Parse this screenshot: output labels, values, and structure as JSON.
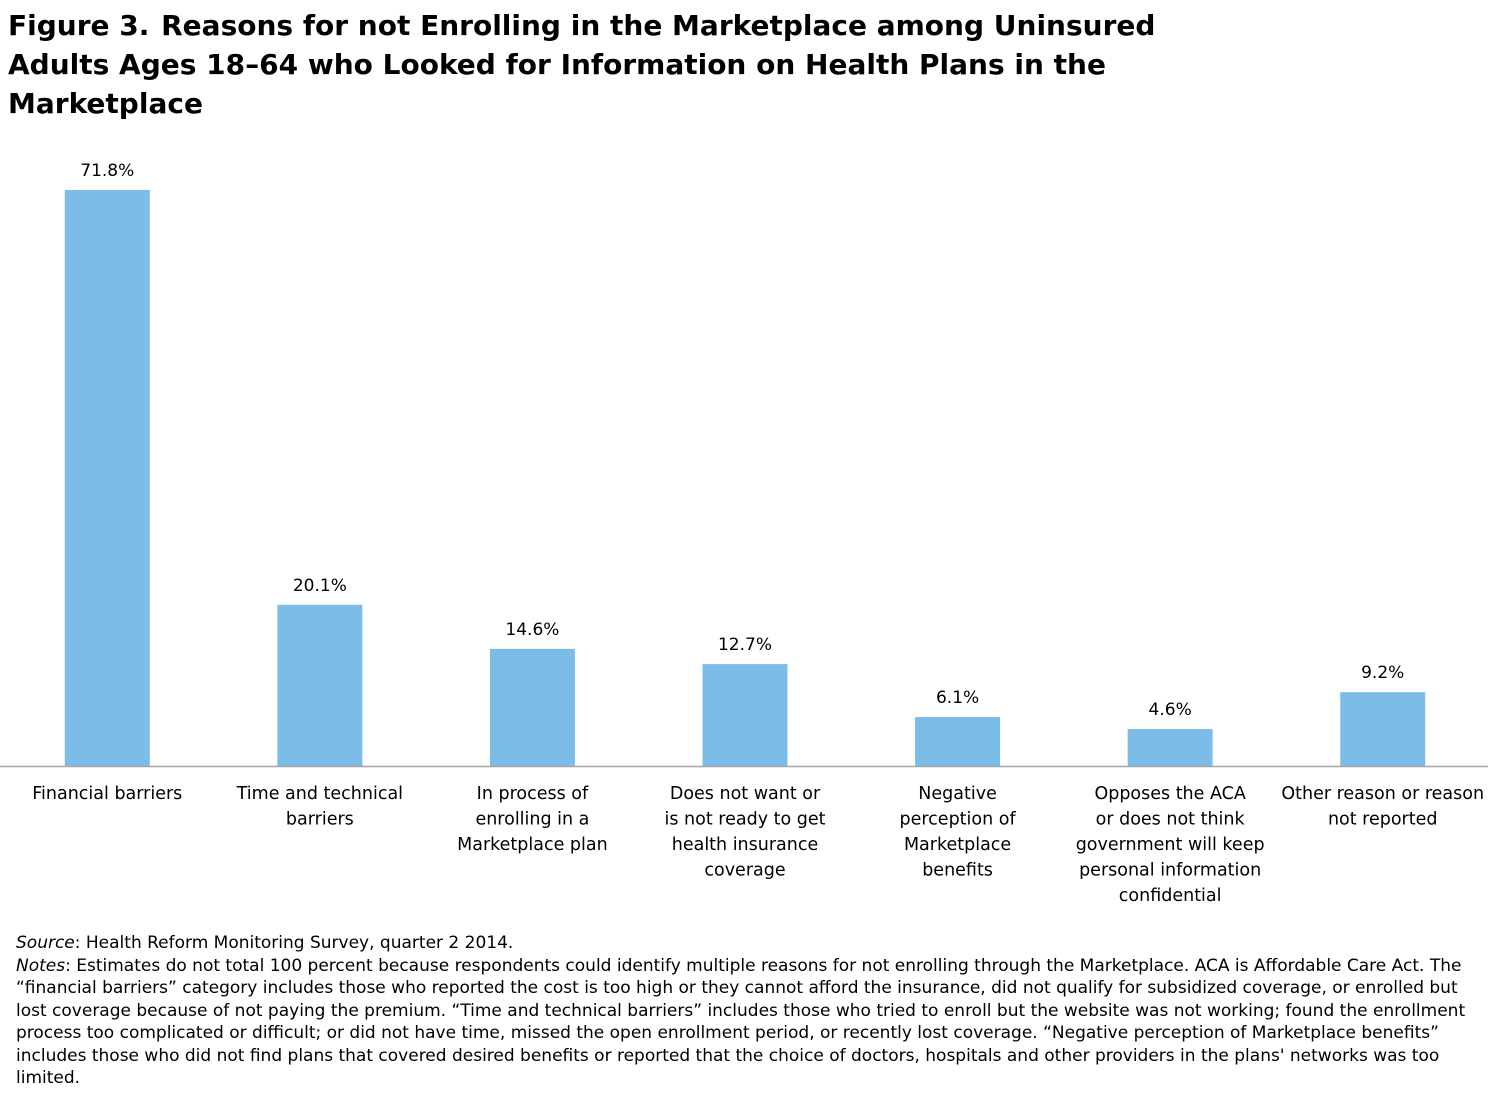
{
  "title": {
    "figure_label": "Figure 3.",
    "text": "Reasons for not Enrolling in the Marketplace among Uninsured Adults Ages 18–64 who Looked for Information on Health Plans in the Marketplace"
  },
  "chart_data": {
    "type": "bar",
    "categories": [
      [
        "Financial barriers"
      ],
      [
        "Time and technical",
        "barriers"
      ],
      [
        "In process of",
        "enrolling in a",
        "Marketplace plan"
      ],
      [
        "Does not want or",
        "is not ready to get",
        "health insurance",
        "coverage"
      ],
      [
        "Negative",
        "perception of",
        "Marketplace",
        "benefits"
      ],
      [
        "Opposes the ACA",
        "or does not think",
        "government will keep",
        "personal information",
        "confidential"
      ],
      [
        "Other reason or reason",
        "not reported"
      ]
    ],
    "values": [
      71.8,
      20.1,
      14.6,
      12.7,
      6.1,
      4.6,
      9.2
    ],
    "data_labels": [
      "71.8%",
      "20.1%",
      "14.6%",
      "12.7%",
      "6.1%",
      "4.6%",
      "9.2%"
    ],
    "ylim": [
      0,
      75
    ],
    "bar_color": "#7cbde8",
    "axis_color": "#a6a6a6",
    "grid": false
  },
  "notes": {
    "source_label": "Source",
    "source_text": ": Health Reform Monitoring Survey, quarter 2 2014.",
    "notes_label": "Notes",
    "notes_text": ":  Estimates do not total 100 percent because respondents could identify multiple reasons for not enrolling through the Marketplace. ACA is Affordable Care Act. The “financial barriers” category includes those who reported the cost is too high or they cannot afford the insurance, did not qualify for subsidized coverage, or enrolled but lost coverage because of not paying the premium. “Time and technical barriers” includes those who tried to enroll but the website was not working; found the enrollment process too complicated or difficult; or did not have time, missed the open enrollment period, or recently lost coverage. “Negative perception of Marketplace benefits” includes those who did not find plans that covered desired benefits or reported that the choice of doctors, hospitals and other providers in the plans' networks was too limited."
  }
}
